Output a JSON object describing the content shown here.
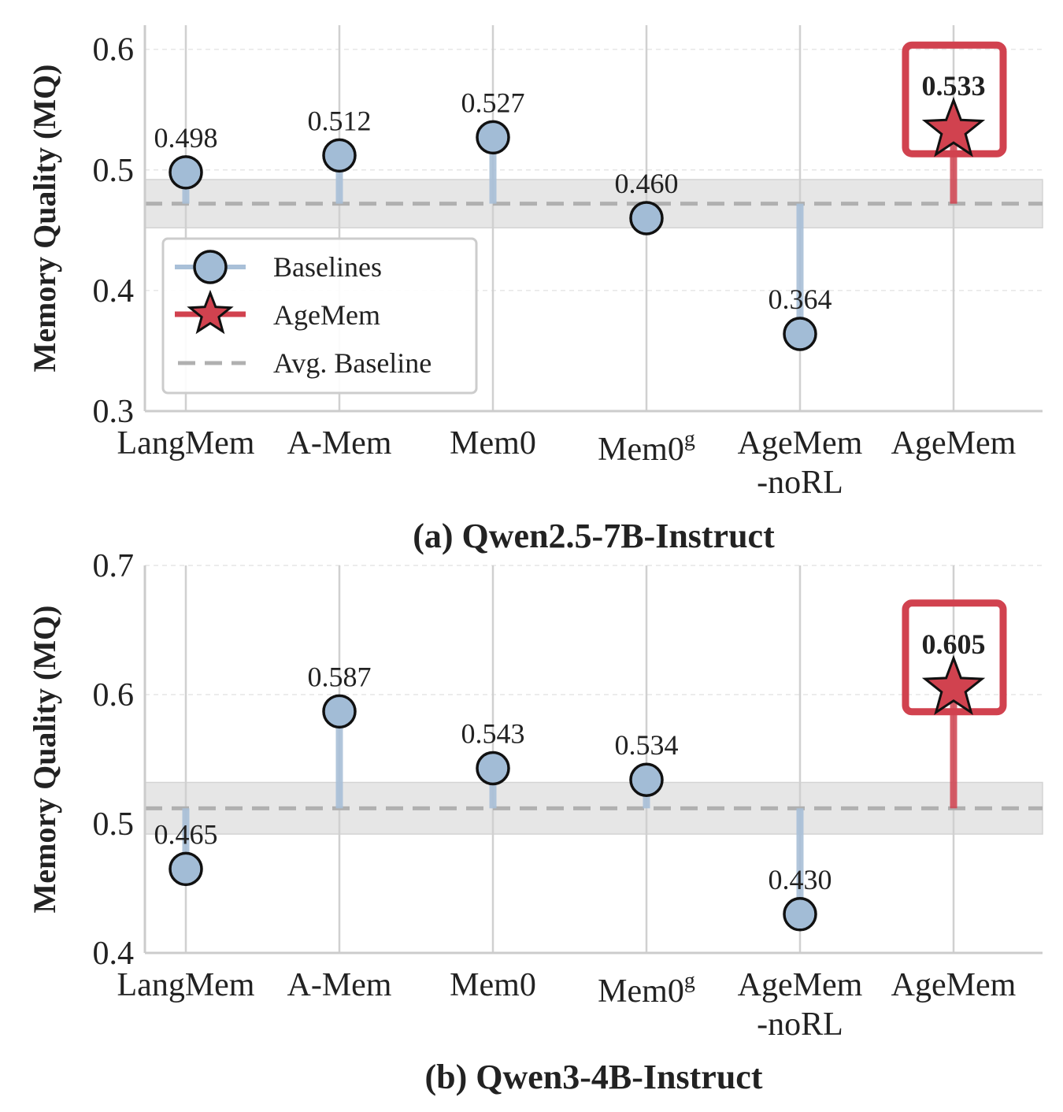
{
  "legend": {
    "baselines": "Baselines",
    "agemem": "AgeMem",
    "avg": "Avg. Baseline"
  },
  "colors": {
    "baseline_fill": "#a2bcd6",
    "baseline_stem": "#a9c0d8",
    "agemem": "#d1424f",
    "avg_line": "#b0b0b0",
    "band": "#e6e6e6",
    "axis": "#cccccc",
    "grid": "#e6e6e6"
  },
  "chart_data": [
    {
      "type": "lollipop",
      "caption": "(a) Qwen2.5-7B-Instruct",
      "ylabel": "Memory Quality (MQ)",
      "ylim": [
        0.3,
        0.62
      ],
      "yticks": [
        "0.3",
        "0.4",
        "0.5",
        "0.6"
      ],
      "categories": [
        {
          "name": "LangMem"
        },
        {
          "name": "A-Mem"
        },
        {
          "name": "Mem0"
        },
        {
          "name": "Mem0",
          "sup": "g"
        },
        {
          "name": "AgeMem",
          "line2": "-noRL"
        },
        {
          "name": "AgeMem"
        }
      ],
      "values": [
        0.498,
        0.512,
        0.527,
        0.46,
        0.364,
        0.533
      ],
      "labels": [
        "0.498",
        "0.512",
        "0.527",
        "0.460",
        "0.364",
        "0.533"
      ],
      "highlight_index": 5,
      "avg_baseline": 0.472,
      "band": [
        0.452,
        0.492
      ],
      "legend_position": "lower-left"
    },
    {
      "type": "lollipop",
      "caption": "(b) Qwen3-4B-Instruct",
      "ylabel": "Memory Quality (MQ)",
      "ylim": [
        0.4,
        0.7
      ],
      "yticks": [
        "0.4",
        "0.5",
        "0.6",
        "0.7"
      ],
      "categories": [
        {
          "name": "LangMem"
        },
        {
          "name": "A-Mem"
        },
        {
          "name": "Mem0"
        },
        {
          "name": "Mem0",
          "sup": "g"
        },
        {
          "name": "AgeMem",
          "line2": "-noRL"
        },
        {
          "name": "AgeMem"
        }
      ],
      "values": [
        0.465,
        0.587,
        0.543,
        0.534,
        0.43,
        0.605
      ],
      "labels": [
        "0.465",
        "0.587",
        "0.543",
        "0.534",
        "0.430",
        "0.605"
      ],
      "highlight_index": 5,
      "avg_baseline": 0.512,
      "band": [
        0.492,
        0.532
      ],
      "legend_position": "none"
    }
  ]
}
